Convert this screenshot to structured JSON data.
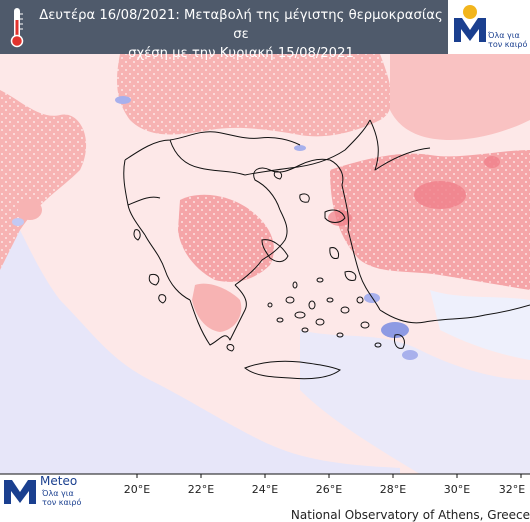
{
  "header": {
    "title_line1": "Δευτέρα 16/08/2021: Μεταβολή της μέγιστης θερμοκρασίας σε",
    "title_line2": "σχέση με την Κυριακή 15/08/2021"
  },
  "logo": {
    "brand": "Meteo",
    "tagline_line1": "Όλα για",
    "tagline_line2": "τον καιρό",
    "colors": {
      "blue": "#1a3f8f",
      "sun": "#f2b51d"
    }
  },
  "axis": {
    "longitude_labels": [
      "20°E",
      "22°E",
      "24°E",
      "26°E",
      "28°E",
      "30°E",
      "32°E"
    ]
  },
  "credit": "National Observatory of Athens, Greece",
  "legend_colors": {
    "background_warm": "#fde8e8",
    "warming": "#f7a9a9",
    "strong_warming": "#f07f86",
    "cooling": "#d7dcfa",
    "strong_cooling": "#9aa6e8"
  },
  "icons": [
    "thermometer-icon",
    "meteo-logo-icon",
    "sun-icon"
  ]
}
